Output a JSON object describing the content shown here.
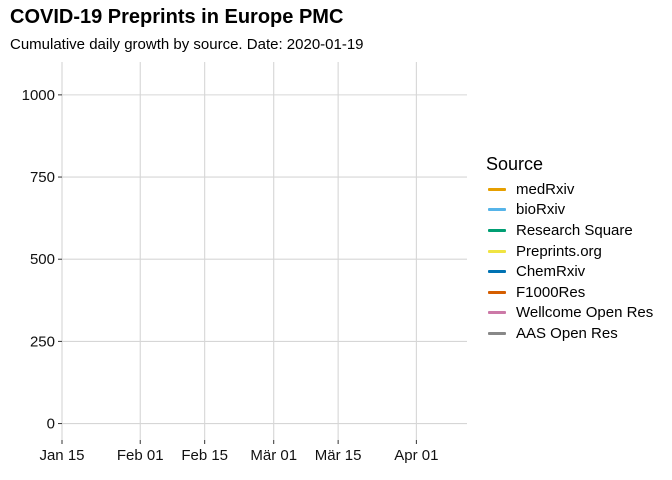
{
  "chart_data": {
    "type": "line",
    "title": "COVID-19 Preprints in Europe PMC",
    "subtitle": "Cumulative daily growth by source. Date: 2020-01-19",
    "xlabel": "",
    "ylabel": "",
    "x_axis": {
      "type": "date",
      "range": [
        "2020-01-15",
        "2020-04-12"
      ],
      "ticks": [
        {
          "value": "2020-01-15",
          "label": "Jan 15"
        },
        {
          "value": "2020-02-01",
          "label": "Feb 01"
        },
        {
          "value": "2020-02-15",
          "label": "Feb 15"
        },
        {
          "value": "2020-03-01",
          "label": "Mär 01"
        },
        {
          "value": "2020-03-15",
          "label": "Mär 15"
        },
        {
          "value": "2020-04-01",
          "label": "Apr 01"
        }
      ]
    },
    "y_axis": {
      "range": [
        -50,
        1100
      ],
      "ticks": [
        0,
        250,
        500,
        750,
        1000
      ]
    },
    "grid": true,
    "legend": {
      "title": "Source",
      "placement": "right",
      "entries": [
        {
          "label": "medRxiv",
          "color": "#E69F00"
        },
        {
          "label": "bioRxiv",
          "color": "#56B4E9"
        },
        {
          "label": "Research Square",
          "color": "#009E73"
        },
        {
          "label": "Preprints.org",
          "color": "#F0E442"
        },
        {
          "label": "ChemRxiv",
          "color": "#0072B2"
        },
        {
          "label": "F1000Res",
          "color": "#D55E00"
        },
        {
          "label": "Wellcome Open Res",
          "color": "#CC79A7"
        },
        {
          "label": "AAS Open Res",
          "color": "#888888"
        }
      ]
    },
    "series": [
      {
        "name": "medRxiv",
        "x": [],
        "y": []
      },
      {
        "name": "bioRxiv",
        "x": [],
        "y": []
      },
      {
        "name": "Research Square",
        "x": [],
        "y": []
      },
      {
        "name": "Preprints.org",
        "x": [],
        "y": []
      },
      {
        "name": "ChemRxiv",
        "x": [],
        "y": []
      },
      {
        "name": "F1000Res",
        "x": [],
        "y": []
      },
      {
        "name": "Wellcome Open Res",
        "x": [],
        "y": []
      },
      {
        "name": "AAS Open Res",
        "x": [],
        "y": []
      }
    ]
  }
}
